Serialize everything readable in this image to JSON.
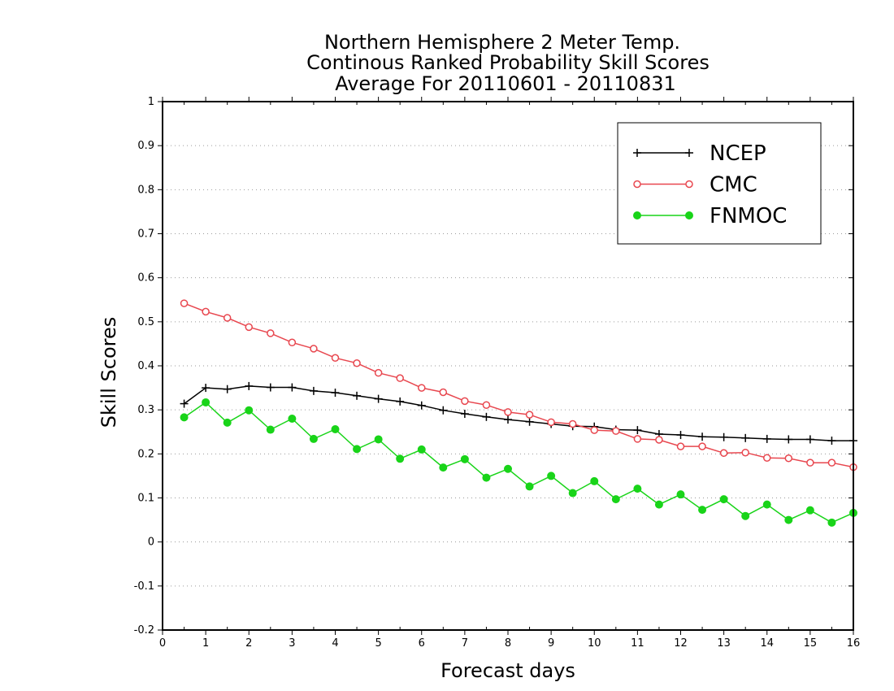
{
  "chart_data": {
    "type": "line",
    "title_lines": [
      "Northern Hemisphere 2 Meter Temp.",
      "Continous Ranked Probability Skill Scores",
      "Average For 20110601 - 20110831"
    ],
    "xlabel": "Forecast days",
    "ylabel": "Skill Scores",
    "xlim": [
      0,
      16
    ],
    "ylim": [
      -0.2,
      1
    ],
    "x_ticks": [
      0,
      1,
      2,
      3,
      4,
      5,
      6,
      7,
      8,
      9,
      10,
      11,
      12,
      13,
      14,
      15,
      16
    ],
    "y_ticks": [
      -0.2,
      -0.1,
      0,
      0.1,
      0.2,
      0.3,
      0.4,
      0.5,
      0.6,
      0.7,
      0.8,
      0.9,
      1
    ],
    "y_tick_labels": [
      "-0.2",
      "-0.1",
      "0",
      "0.1",
      "0.2",
      "0.3",
      "0.4",
      "0.5",
      "0.6",
      "0.7",
      "0.8",
      "0.9",
      "1"
    ],
    "grid": "horizontal dotted",
    "legend_position": "top-right",
    "x": [
      0.5,
      1,
      1.5,
      2,
      2.5,
      3,
      3.5,
      4,
      4.5,
      5,
      5.5,
      6,
      6.5,
      7,
      7.5,
      8,
      8.5,
      9,
      9.5,
      10,
      10.5,
      11,
      11.5,
      12,
      12.5,
      13,
      13.5,
      14,
      14.5,
      15,
      15.5,
      16
    ],
    "series": [
      {
        "name": "NCEP",
        "color": "#000000",
        "marker": "plus",
        "values": [
          0.314,
          0.35,
          0.347,
          0.354,
          0.351,
          0.351,
          0.343,
          0.339,
          0.332,
          0.325,
          0.319,
          0.31,
          0.299,
          0.291,
          0.284,
          0.278,
          0.273,
          0.268,
          0.263,
          0.262,
          0.255,
          0.254,
          0.245,
          0.243,
          0.239,
          0.238,
          0.236,
          0.234,
          0.233,
          0.233,
          0.23,
          0.23
        ]
      },
      {
        "name": "CMC",
        "color": "#e8474f",
        "marker": "open-circle",
        "values": [
          0.542,
          0.523,
          0.509,
          0.488,
          0.474,
          0.453,
          0.439,
          0.418,
          0.406,
          0.384,
          0.372,
          0.35,
          0.34,
          0.32,
          0.311,
          0.295,
          0.289,
          0.272,
          0.268,
          0.254,
          0.252,
          0.234,
          0.232,
          0.217,
          0.217,
          0.202,
          0.203,
          0.191,
          0.19,
          0.18,
          0.18,
          0.17
        ]
      },
      {
        "name": "FNMOC",
        "color": "#19d419",
        "marker": "filled-circle",
        "values": [
          0.283,
          0.317,
          0.271,
          0.299,
          0.255,
          0.28,
          0.234,
          0.256,
          0.211,
          0.233,
          0.189,
          0.21,
          0.169,
          0.188,
          0.146,
          0.166,
          0.126,
          0.15,
          0.111,
          0.138,
          0.097,
          0.121,
          0.085,
          0.108,
          0.073,
          0.097,
          0.059,
          0.085,
          0.05,
          0.072,
          0.044,
          0.066
        ]
      }
    ]
  }
}
